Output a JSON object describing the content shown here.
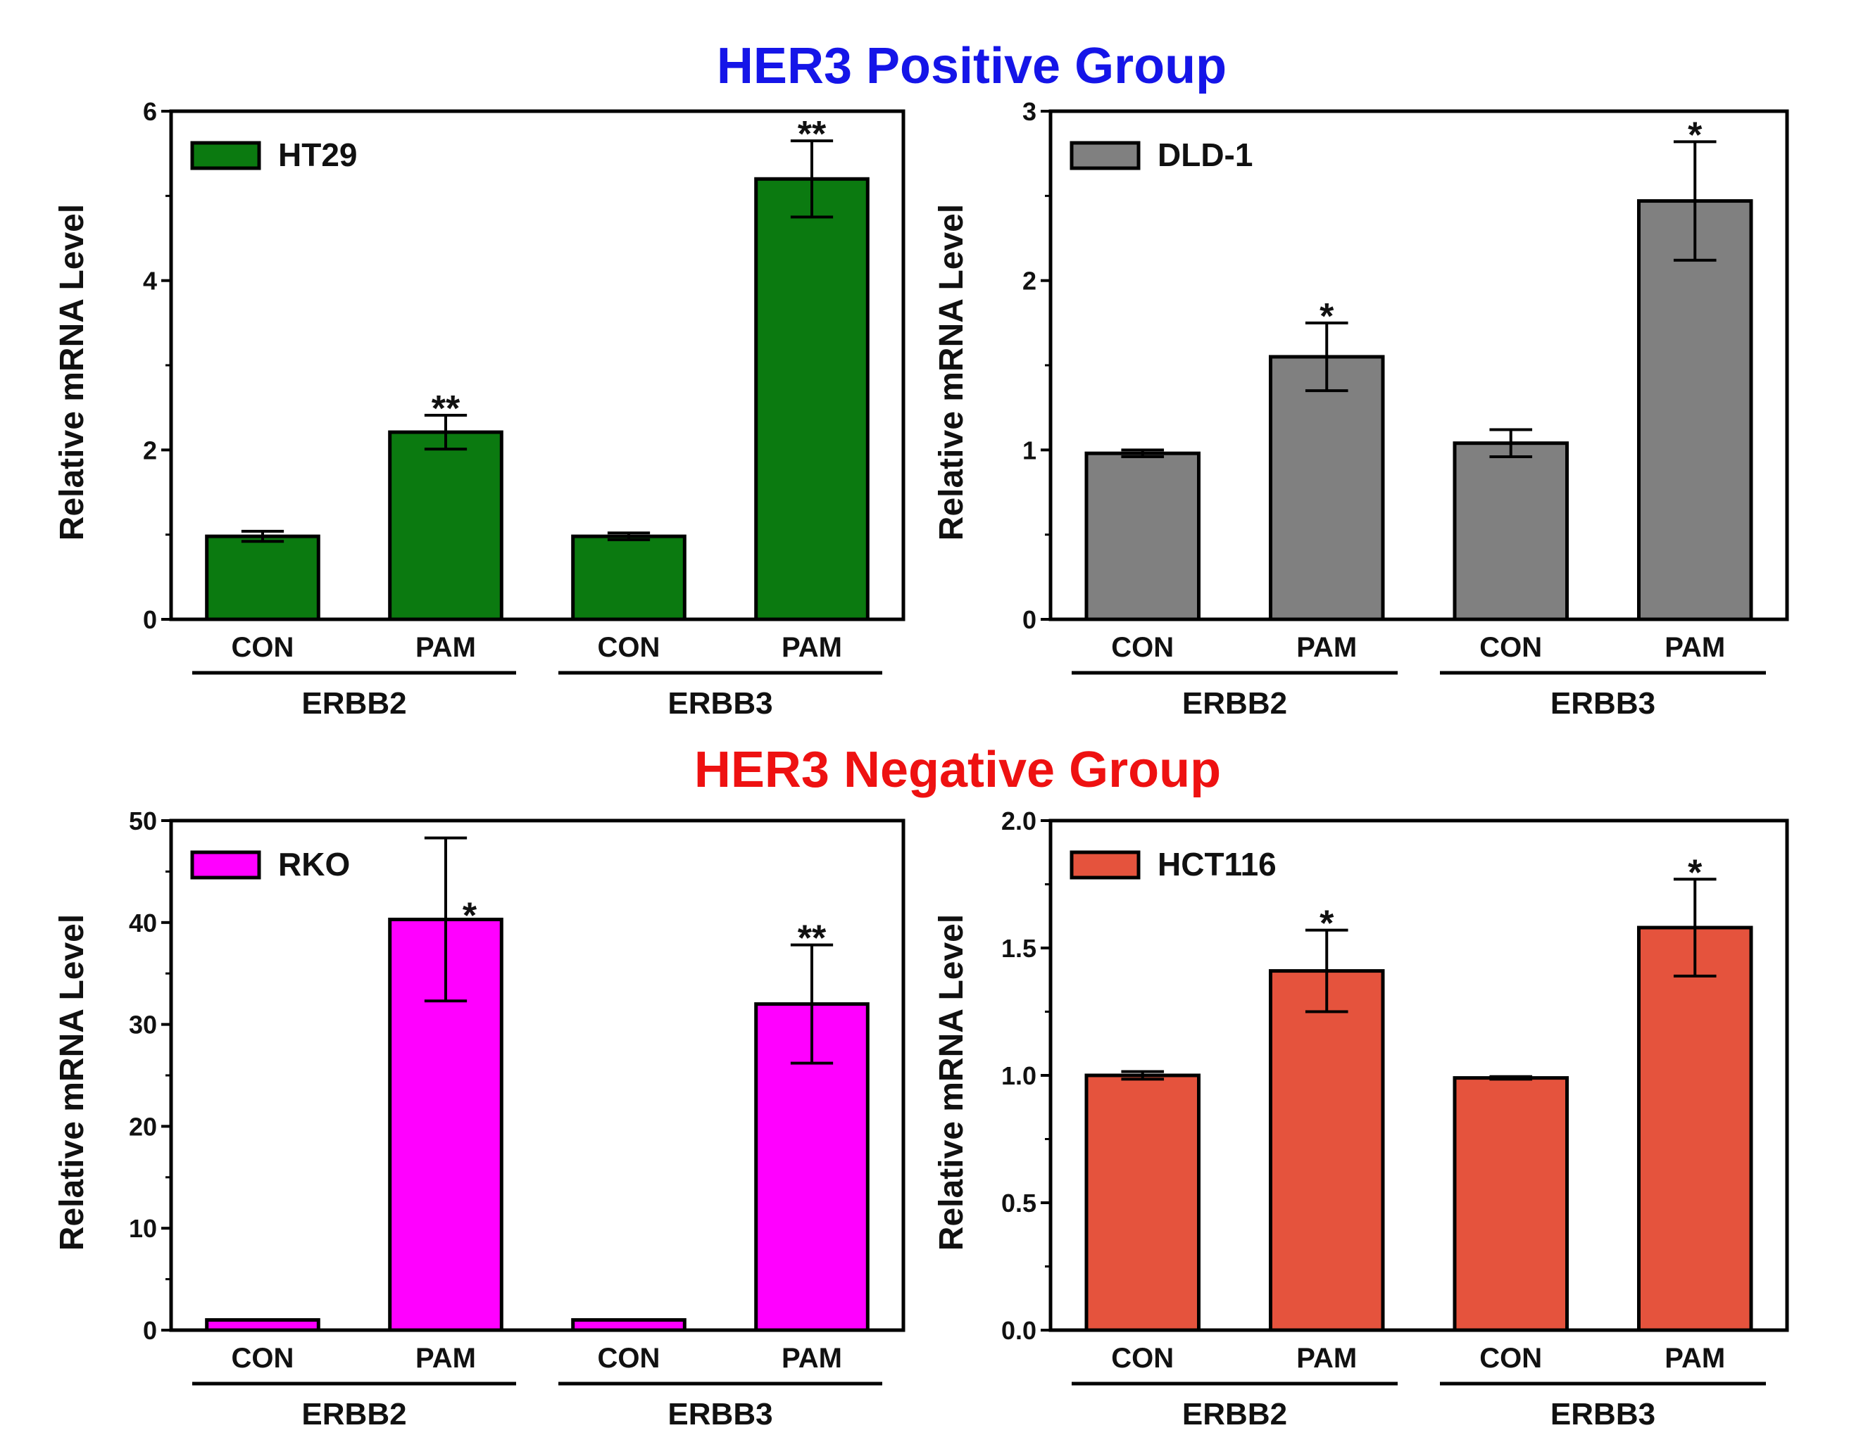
{
  "titles": {
    "positive": "HER3 Positive Group",
    "negative": "HER3 Negative Group"
  },
  "colors": {
    "positive_title": "#1515e8",
    "negative_title": "#ee1111"
  },
  "chart_data": [
    {
      "type": "bar",
      "legend": "HT29",
      "color": "#0b7a10",
      "ylabel": "Relative mRNA Level",
      "ylim": [
        0,
        6
      ],
      "yticks": [
        "0",
        "2",
        "4",
        "6"
      ],
      "ytick_values": [
        0,
        2,
        4,
        6
      ],
      "minor_step": 1,
      "categories": [
        "CON",
        "PAM",
        "CON",
        "PAM"
      ],
      "groups": [
        "ERBB2",
        "ERBB3"
      ],
      "values": [
        0.98,
        2.21,
        0.98,
        5.2
      ],
      "errors": [
        0.06,
        0.2,
        0.04,
        0.45
      ],
      "significance": [
        "",
        "**",
        "",
        "**"
      ]
    },
    {
      "type": "bar",
      "legend": "DLD-1",
      "color": "#808080",
      "ylabel": "Relative mRNA Level",
      "ylim": [
        0,
        3
      ],
      "yticks": [
        "0",
        "1",
        "2",
        "3"
      ],
      "ytick_values": [
        0,
        1,
        2,
        3
      ],
      "minor_step": 0.5,
      "categories": [
        "CON",
        "PAM",
        "CON",
        "PAM"
      ],
      "groups": [
        "ERBB2",
        "ERBB3"
      ],
      "values": [
        0.98,
        1.55,
        1.04,
        2.47
      ],
      "errors": [
        0.02,
        0.2,
        0.08,
        0.35
      ],
      "significance": [
        "",
        "*",
        "",
        "*"
      ]
    },
    {
      "type": "bar",
      "legend": "RKO",
      "color": "#ff00ff",
      "ylabel": "Relative mRNA Level",
      "ylim": [
        0,
        50
      ],
      "yticks": [
        "0",
        "10",
        "20",
        "30",
        "40",
        "50"
      ],
      "ytick_values": [
        0,
        10,
        20,
        30,
        40,
        50
      ],
      "minor_step": 5,
      "categories": [
        "CON",
        "PAM",
        "CON",
        "PAM"
      ],
      "groups": [
        "ERBB2",
        "ERBB3"
      ],
      "values": [
        1.0,
        40.3,
        1.0,
        32.0
      ],
      "errors": [
        0,
        8,
        0,
        5.8
      ],
      "significance": [
        "",
        "*",
        "",
        "**"
      ]
    },
    {
      "type": "bar",
      "legend": "HCT116",
      "color": "#e5533d",
      "ylabel": "Relative mRNA Level",
      "ylim": [
        0,
        2.0
      ],
      "yticks": [
        "0.0",
        "0.5",
        "1.0",
        "1.5",
        "2.0"
      ],
      "ytick_values": [
        0,
        0.5,
        1.0,
        1.5,
        2.0
      ],
      "minor_step": 0.25,
      "categories": [
        "CON",
        "PAM",
        "CON",
        "PAM"
      ],
      "groups": [
        "ERBB2",
        "ERBB3"
      ],
      "values": [
        1.0,
        1.41,
        0.99,
        1.58
      ],
      "errors": [
        0.015,
        0.16,
        0.005,
        0.19
      ],
      "significance": [
        "",
        "*",
        "",
        "*"
      ]
    }
  ]
}
